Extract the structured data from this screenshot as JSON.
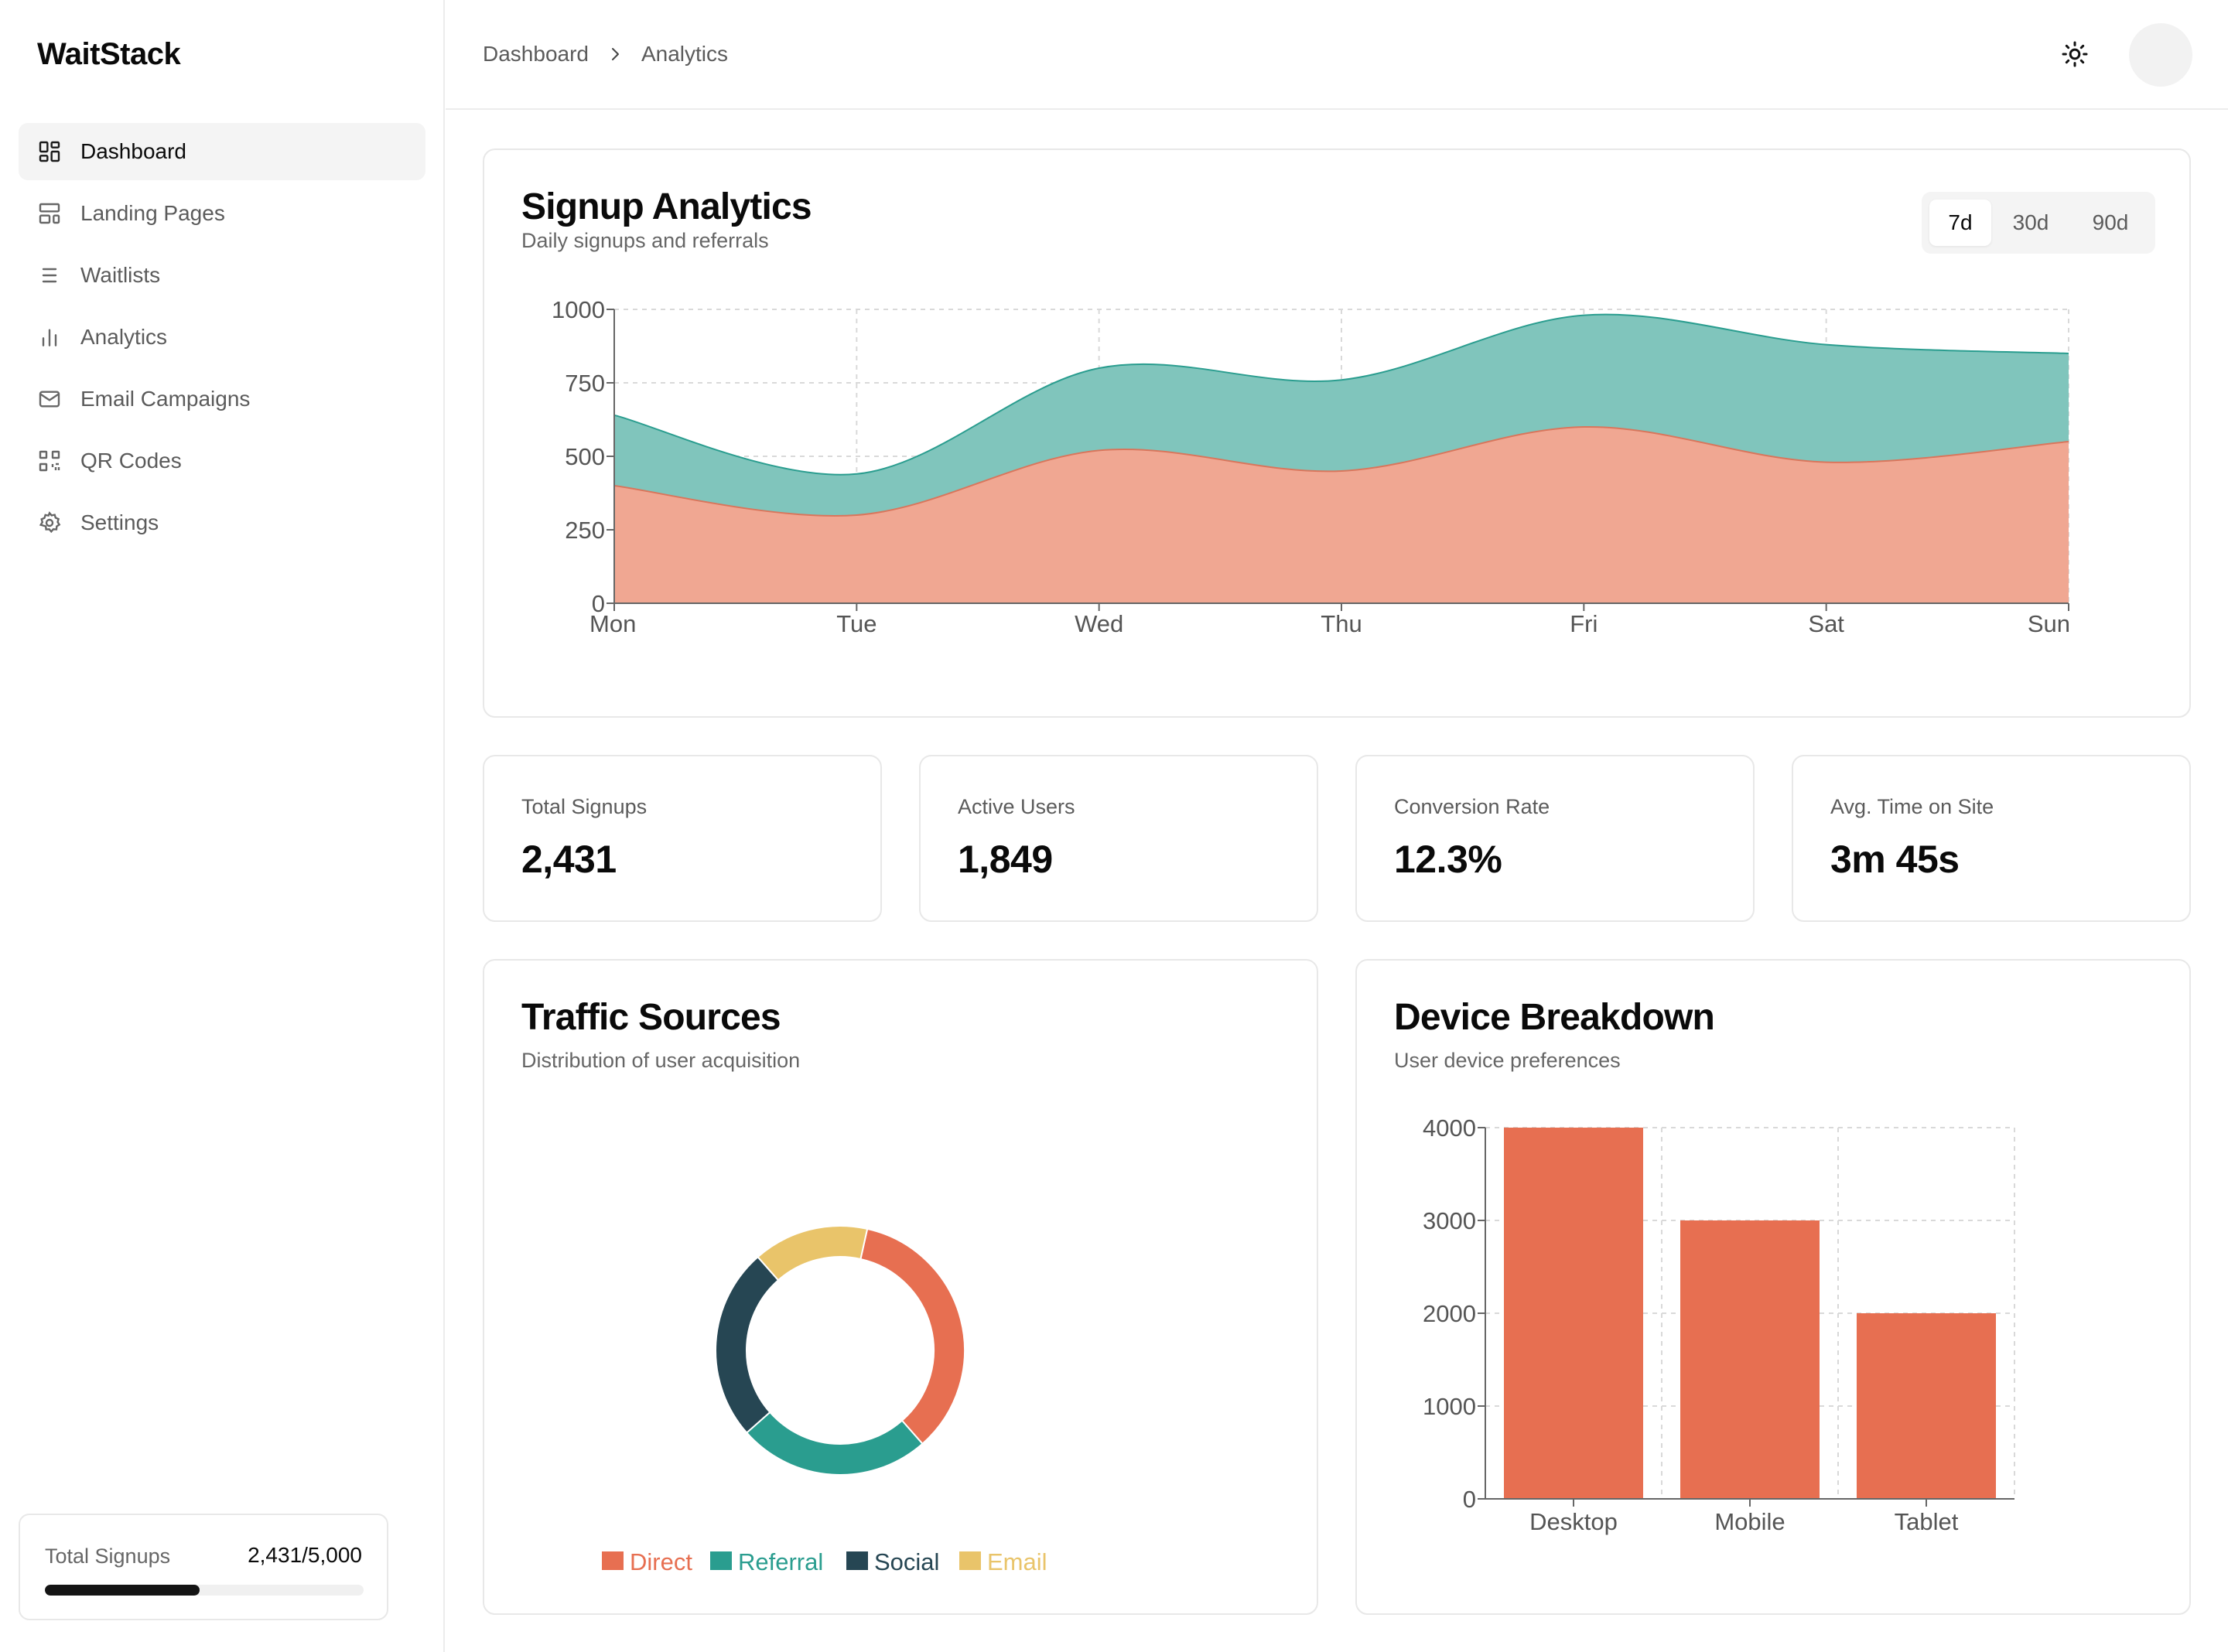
{
  "app": {
    "name": "WaitStack"
  },
  "sidebar": {
    "items": [
      {
        "label": "Dashboard",
        "icon": "dashboard-icon",
        "active": true
      },
      {
        "label": "Landing Pages",
        "icon": "layout-icon",
        "active": false
      },
      {
        "label": "Waitlists",
        "icon": "list-icon",
        "active": false
      },
      {
        "label": "Analytics",
        "icon": "bar-chart-icon",
        "active": false
      },
      {
        "label": "Email Campaigns",
        "icon": "mail-icon",
        "active": false
      },
      {
        "label": "QR Codes",
        "icon": "qr-code-icon",
        "active": false
      },
      {
        "label": "Settings",
        "icon": "gear-icon",
        "active": false
      }
    ],
    "signups": {
      "label": "Total Signups",
      "value": "2,431/5,000",
      "progress": 0.4862
    }
  },
  "header": {
    "breadcrumb": [
      "Dashboard",
      "Analytics"
    ],
    "theme_icon": "sun-icon"
  },
  "signup_analytics": {
    "title": "Signup Analytics",
    "subtitle": "Daily signups and referrals",
    "ranges": [
      "7d",
      "30d",
      "90d"
    ],
    "selected_range": "7d"
  },
  "stats": [
    {
      "label": "Total Signups",
      "value": "2,431"
    },
    {
      "label": "Active Users",
      "value": "1,849"
    },
    {
      "label": "Conversion Rate",
      "value": "12.3%"
    },
    {
      "label": "Avg. Time on Site",
      "value": "3m 45s"
    }
  ],
  "traffic": {
    "title": "Traffic Sources",
    "subtitle": "Distribution of user acquisition"
  },
  "devices": {
    "title": "Device Breakdown",
    "subtitle": "User device preferences"
  },
  "colors": {
    "accent": "#e76f51",
    "teal": "#2a9d8f",
    "navy": "#264653",
    "yellow": "#e9c46a",
    "area_bottom": "#f0a792",
    "area_top": "#80c5bc"
  },
  "chart_data": [
    {
      "type": "area",
      "stacked": true,
      "categories": [
        "Mon",
        "Tue",
        "Wed",
        "Thu",
        "Fri",
        "Sat",
        "Sun"
      ],
      "series": [
        {
          "values": [
            400,
            300,
            520,
            450,
            600,
            480,
            550
          ],
          "color": "#f0a792"
        },
        {
          "values": [
            240,
            140,
            280,
            310,
            380,
            400,
            300
          ],
          "color": "#80c5bc"
        }
      ],
      "ylim": [
        0,
        1000
      ],
      "yticks": [
        "0",
        "250",
        "500",
        "750",
        "1000"
      ],
      "grid": true
    },
    {
      "type": "pie",
      "donut": true,
      "categories": [
        "Direct",
        "Referral",
        "Social",
        "Email"
      ],
      "values": [
        35,
        25,
        25,
        15
      ],
      "colors": [
        "#e76f51",
        "#2a9d8f",
        "#264653",
        "#e9c46a"
      ],
      "legend": "bottom"
    },
    {
      "type": "bar",
      "categories": [
        "Desktop",
        "Mobile",
        "Tablet"
      ],
      "values": [
        4000,
        3000,
        2000
      ],
      "ylim": [
        0,
        4000
      ],
      "yticks": [
        "0",
        "1000",
        "2000",
        "3000",
        "4000"
      ],
      "color": "#e76f51",
      "grid": true
    }
  ]
}
